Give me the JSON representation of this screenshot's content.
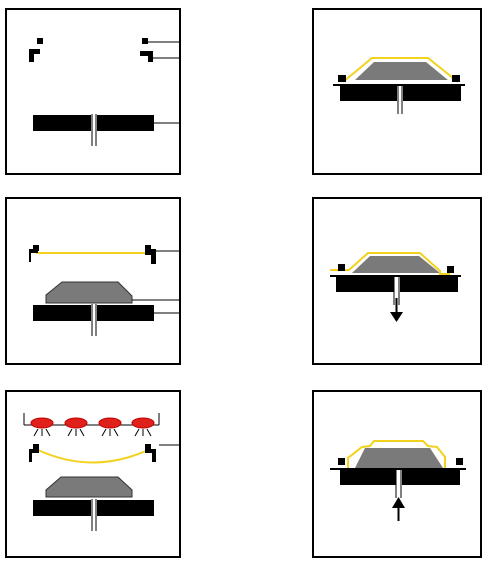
{
  "colors": {
    "frame": "#000000",
    "clamp": "#000000",
    "platen": "#000000",
    "mold": "#7a7a7a",
    "film": "#f2d21e",
    "heater": "#e0201a",
    "heater_outline": "#c00000",
    "callout": "#000000"
  },
  "icons": {
    "down_arrow": "down-arrow-icon",
    "up_arrow": "up-arrow-icon",
    "heater": "heater-element-icon"
  },
  "panels": [
    {
      "id": "step-1",
      "stage": "clamp-open"
    },
    {
      "id": "step-2",
      "stage": "film-clamped"
    },
    {
      "id": "step-3",
      "stage": "film-heating"
    },
    {
      "id": "step-4",
      "stage": "film-draped"
    },
    {
      "id": "step-5",
      "stage": "vacuum-applied"
    },
    {
      "id": "step-6",
      "stage": "pressure-release"
    }
  ]
}
